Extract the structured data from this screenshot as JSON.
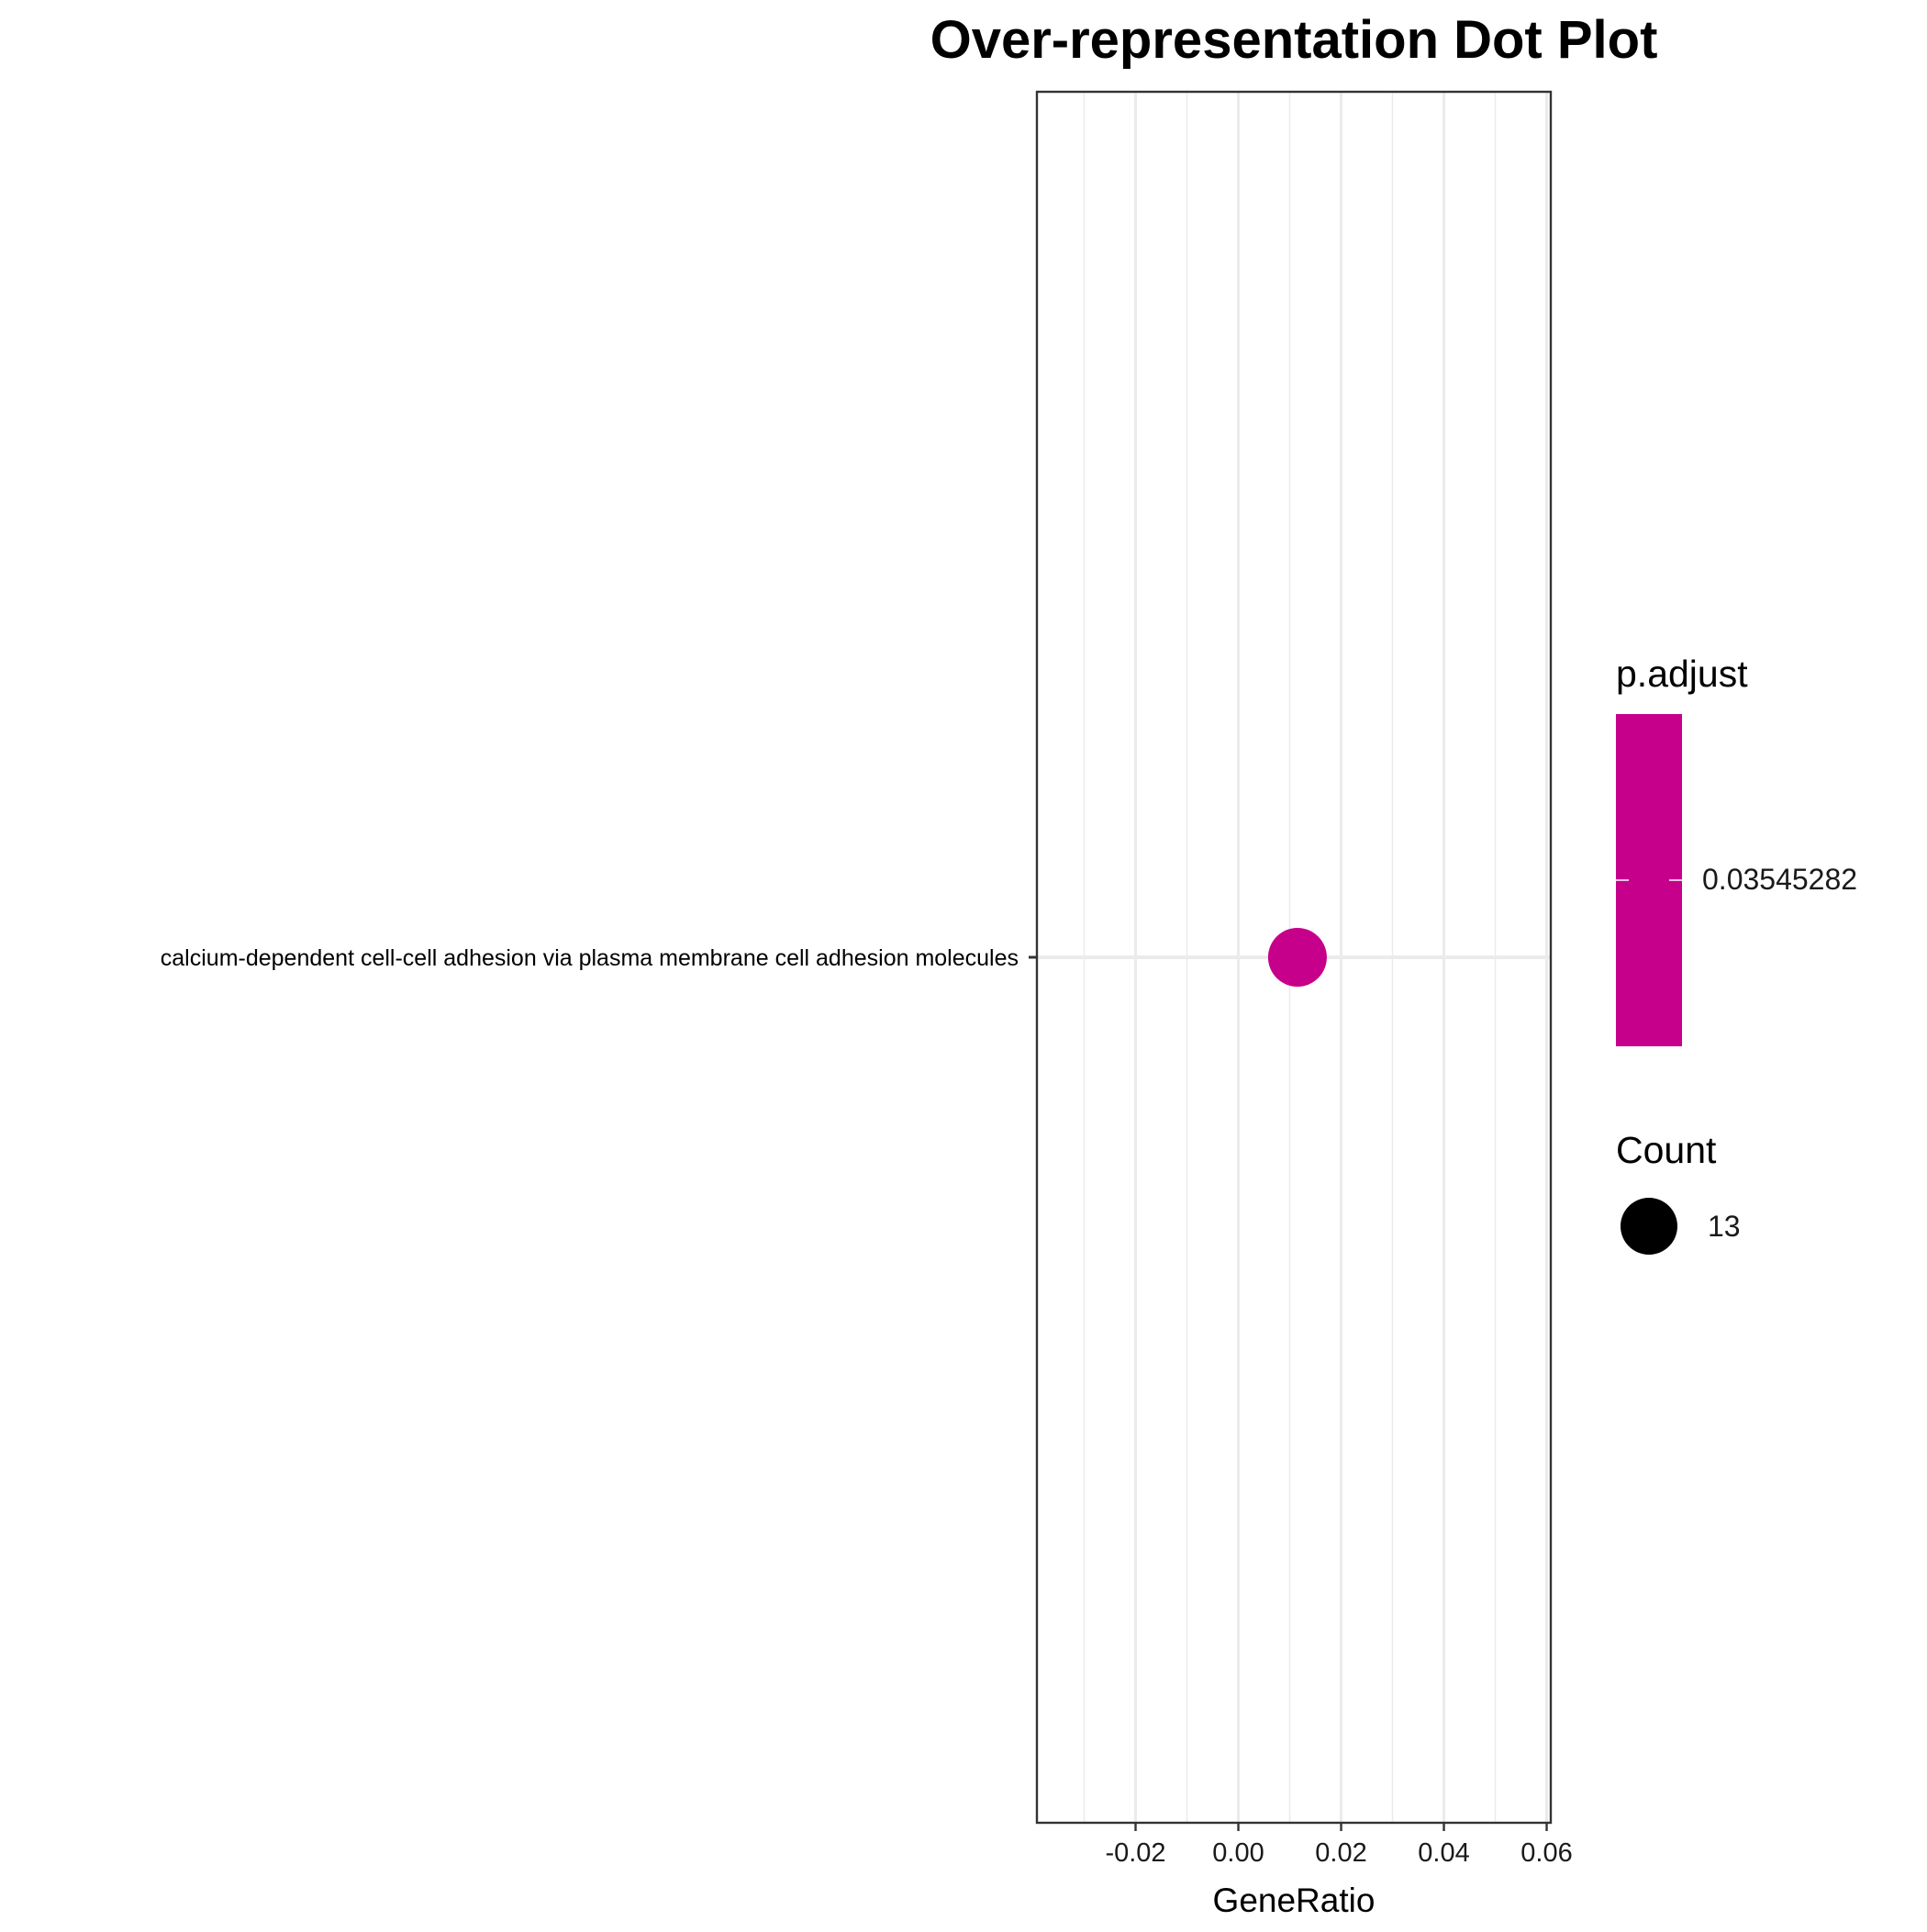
{
  "chart_data": {
    "type": "scatter",
    "title": "Over-representation Dot Plot",
    "xlabel": "GeneRatio",
    "ylabel": "",
    "xlim": [
      -0.0392,
      0.0608
    ],
    "x_ticks": [
      -0.02,
      0.0,
      0.02,
      0.04,
      0.06
    ],
    "x_tick_labels": [
      "-0.02",
      "0.00",
      "0.02",
      "0.04",
      "0.06"
    ],
    "categories": [
      "calcium-dependent cell-cell adhesion via plasma membrane cell adhesion molecules"
    ],
    "points": [
      {
        "term": "calcium-dependent cell-cell adhesion via plasma membrane cell adhesion molecules",
        "gene_ratio": 0.0115,
        "count": 13,
        "p_adjust": 0.03545282
      }
    ],
    "grid": true,
    "legend_position": "right",
    "color_legend": {
      "title": "p.adjust",
      "label": "0.03545282",
      "color": "#C7008B"
    },
    "size_legend": {
      "title": "Count",
      "label": "13"
    },
    "point_color": "#C7008B"
  }
}
